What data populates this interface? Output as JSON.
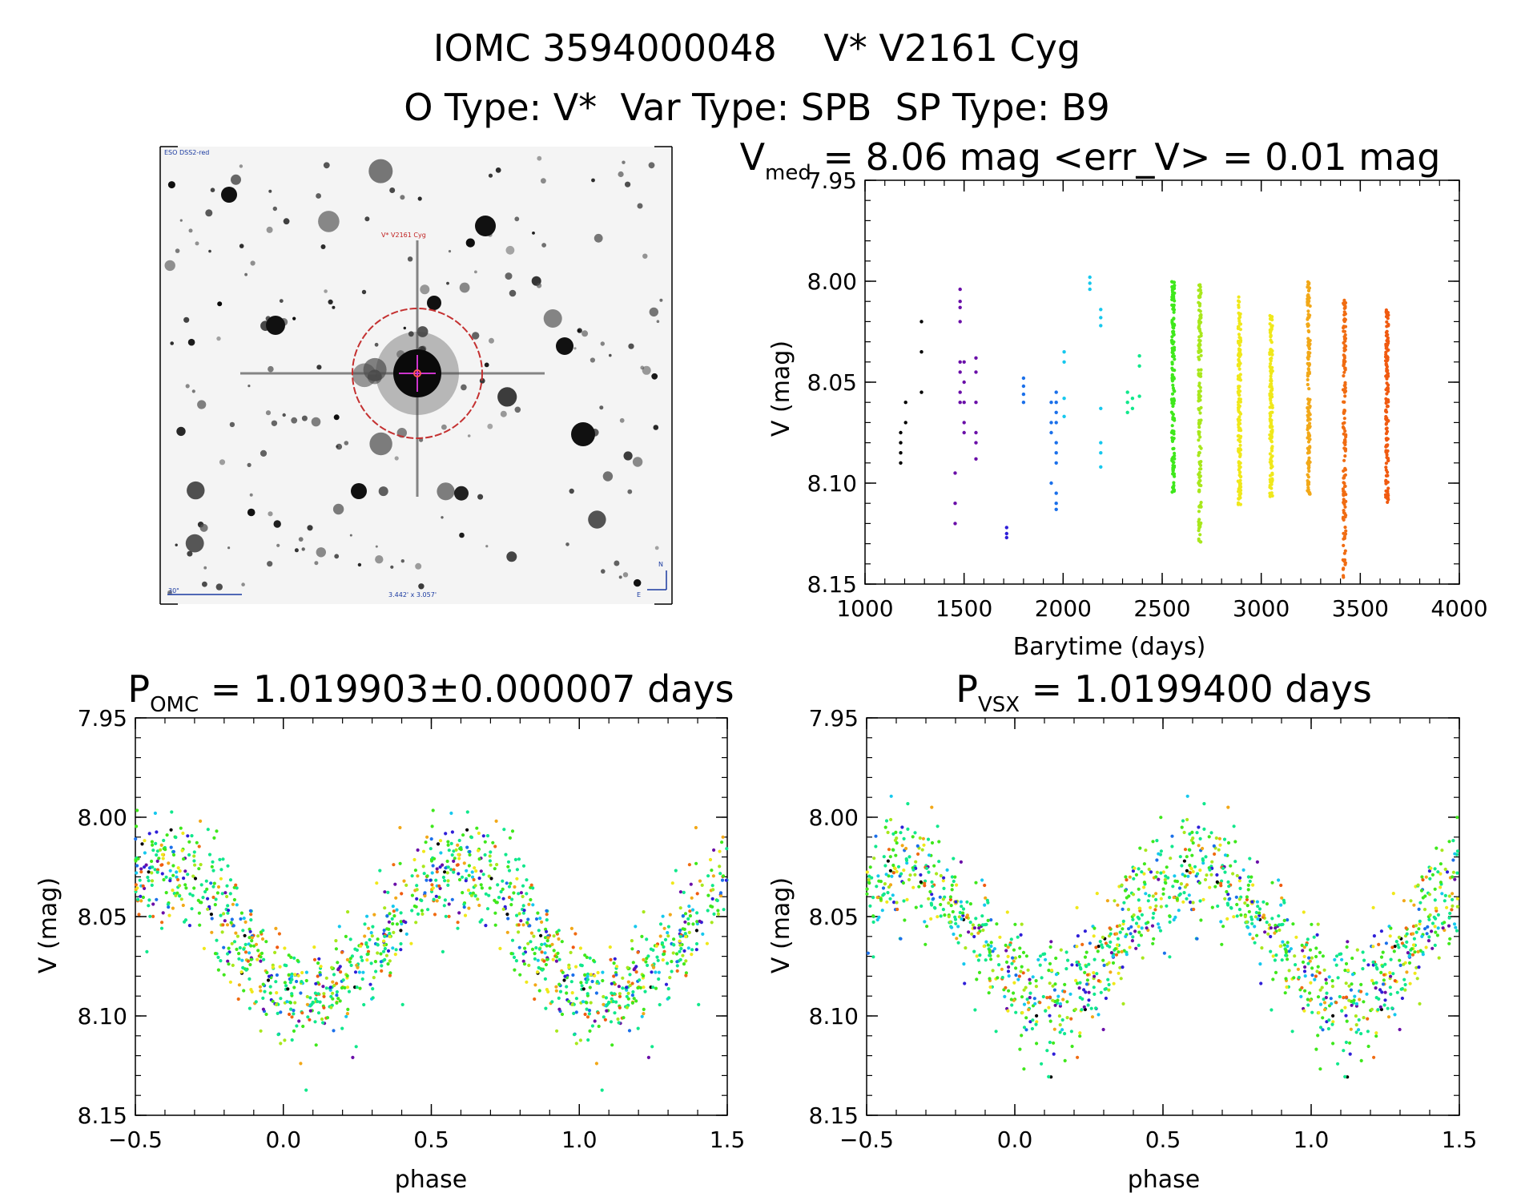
{
  "header": {
    "title_line1": "IOMC 3594000048    V* V2161 Cyg",
    "title_line2": "O Type: V*  Var Type: SPB  SP Type: B9"
  },
  "sky_image": {
    "top_left_label": "ESO DSS2-red",
    "target_label": "V* V2161 Cyg",
    "scale_label": "30\"",
    "fov_label": "3.442' x 3.057'",
    "north_label": "N",
    "east_label": "E"
  },
  "colors": {
    "time_gradient": [
      "#000000",
      "#6a0fa8",
      "#2f1fd8",
      "#1b70ea",
      "#16c8ee",
      "#10e88c",
      "#3fe81c",
      "#a8e81c",
      "#f0e81a",
      "#f2a818",
      "#f06c12",
      "#f05a10"
    ],
    "sky_circle": "#c43030",
    "sky_label": "#c02020",
    "sky_marker": "#cc33cc",
    "sky_overlay_text": "#1a3aa0"
  },
  "chart_data": [
    {
      "id": "lightcurve",
      "type": "scatter",
      "title_main": "V",
      "title_sub": "med",
      "title_rest": " = 8.06 mag <err_V> = 0.01 mag",
      "xlabel": "Barytime (days)",
      "ylabel": "V (mag)",
      "xlim": [
        1000,
        4000
      ],
      "ylim": [
        8.15,
        7.95
      ],
      "y_inverted": true,
      "xticks": [
        "1000",
        "1500",
        "2000",
        "2500",
        "3000",
        "3500",
        "4000"
      ],
      "yticks": [
        "7.95",
        "8.00",
        "8.05",
        "8.10",
        "8.15"
      ],
      "epochs": [
        {
          "t": 1180,
          "values": [
            8.075,
            8.08,
            8.085,
            8.09
          ]
        },
        {
          "t": 1205,
          "values": [
            8.06,
            8.07
          ]
        },
        {
          "t": 1285,
          "values": [
            8.02,
            8.035,
            8.055
          ]
        },
        {
          "t": 1455,
          "values": [
            8.095,
            8.11,
            8.12
          ]
        },
        {
          "t": 1480,
          "values": [
            8.004,
            8.01,
            8.013,
            8.02,
            8.04,
            8.045,
            8.055,
            8.06
          ]
        },
        {
          "t": 1500,
          "values": [
            8.04,
            8.05,
            8.06,
            8.07,
            8.075
          ]
        },
        {
          "t": 1560,
          "values": [
            8.038,
            8.045,
            8.06,
            8.075,
            8.08,
            8.088
          ]
        },
        {
          "t": 1715,
          "values": [
            8.122,
            8.125,
            8.127
          ]
        },
        {
          "t": 1800,
          "values": [
            8.048,
            8.052,
            8.056,
            8.06
          ]
        },
        {
          "t": 1940,
          "values": [
            8.06,
            8.07,
            8.075,
            8.1
          ]
        },
        {
          "t": 1965,
          "values": [
            8.055,
            8.06,
            8.065,
            8.07,
            8.08,
            8.085,
            8.09,
            8.105,
            8.11,
            8.113
          ]
        },
        {
          "t": 2005,
          "values": [
            8.035,
            8.04,
            8.058,
            8.067
          ]
        },
        {
          "t": 2135,
          "values": [
            7.998,
            8.001,
            8.004
          ]
        },
        {
          "t": 2190,
          "values": [
            8.014,
            8.018,
            8.022,
            8.063,
            8.08,
            8.085,
            8.092
          ]
        },
        {
          "t": 2325,
          "values": [
            8.055,
            8.06,
            8.065
          ]
        },
        {
          "t": 2350,
          "values": [
            8.058,
            8.063
          ]
        },
        {
          "t": 2385,
          "values": [
            8.037,
            8.042,
            8.057
          ]
        },
        {
          "t": 2555,
          "band": [
            8.0,
            8.105
          ]
        },
        {
          "t": 2690,
          "band": [
            8.001,
            8.13
          ]
        },
        {
          "t": 2890,
          "band": [
            8.007,
            8.113
          ]
        },
        {
          "t": 3050,
          "band": [
            8.017,
            8.107
          ]
        },
        {
          "t": 3240,
          "band": [
            7.999,
            8.108
          ]
        },
        {
          "t": 3420,
          "band": [
            8.009,
            8.148
          ]
        },
        {
          "t": 3635,
          "band": [
            8.014,
            8.11
          ]
        }
      ]
    },
    {
      "id": "phase_omc",
      "type": "scatter",
      "title_main": "P",
      "title_sub": "OMC",
      "title_rest": " = 1.019903±0.000007 days",
      "xlabel": "phase",
      "ylabel": "V (mag)",
      "xlim": [
        -0.5,
        1.5
      ],
      "ylim": [
        8.15,
        7.95
      ],
      "y_inverted": true,
      "xticks": [
        "−0.5",
        "0.0",
        "0.5",
        "1.0",
        "1.5"
      ],
      "yticks": [
        "7.95",
        "8.00",
        "8.05",
        "8.10",
        "8.15"
      ],
      "period_days": 1.019903,
      "mean_mag": 8.058,
      "amplitude_mag": 0.032,
      "max_phase": 0.6
    },
    {
      "id": "phase_vsx",
      "type": "scatter",
      "title_main": "P",
      "title_sub": "VSX",
      "title_rest": " = 1.0199400 days",
      "xlabel": "phase",
      "ylabel": "V (mag)",
      "xlim": [
        -0.5,
        1.5
      ],
      "ylim": [
        8.15,
        7.95
      ],
      "y_inverted": true,
      "xticks": [
        "−0.5",
        "0.0",
        "0.5",
        "1.0",
        "1.5"
      ],
      "yticks": [
        "7.95",
        "8.00",
        "8.05",
        "8.10",
        "8.15"
      ],
      "period_days": 1.01994,
      "mean_mag": 8.058,
      "amplitude_mag": 0.032,
      "max_phase": 0.62
    }
  ]
}
